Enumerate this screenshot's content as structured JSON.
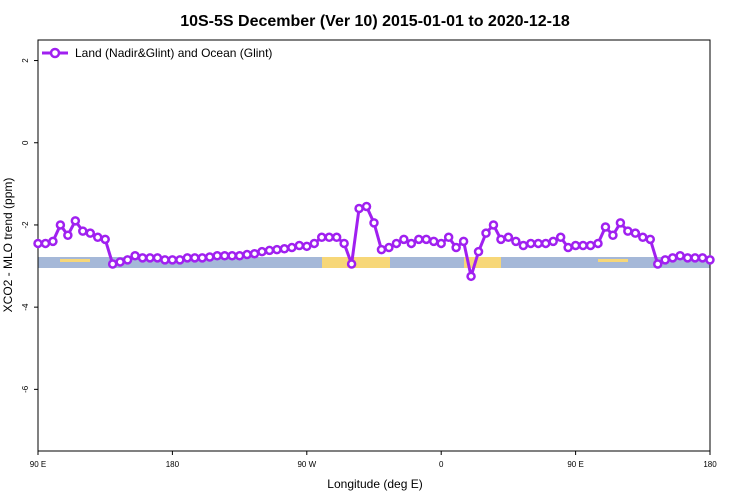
{
  "chart_data": {
    "type": "line",
    "title": "10S-5S December (Ver 10)   2015-01-01 to 2020-12-18",
    "x_label": "Longitude (deg E)",
    "y_label": "XCO2 - MLO trend (ppm)",
    "x": [
      90,
      95,
      100,
      105,
      110,
      115,
      120,
      125,
      130,
      135,
      140,
      145,
      150,
      155,
      160,
      165,
      170,
      175,
      180,
      185,
      190,
      195,
      200,
      205,
      210,
      215,
      220,
      225,
      230,
      235,
      240,
      245,
      250,
      255,
      260,
      265,
      270,
      275,
      280,
      285,
      290,
      295,
      300,
      305,
      310,
      315,
      320,
      325,
      330,
      335,
      340,
      345,
      350,
      355,
      360,
      365,
      370,
      375,
      380,
      385,
      390,
      395,
      400,
      405,
      410,
      415,
      420,
      425,
      430,
      435,
      440,
      445,
      450,
      455,
      460,
      465,
      470,
      475,
      480,
      485,
      490,
      495,
      500,
      505,
      510,
      515,
      520,
      525,
      530,
      535,
      540
    ],
    "series": [
      {
        "name": "Land (Nadir&Glint) and Ocean (Glint)",
        "color": "#a020f0",
        "values": [
          -2.45,
          -2.45,
          -2.4,
          -2.0,
          -2.25,
          -1.9,
          -2.15,
          -2.2,
          -2.3,
          -2.35,
          -2.95,
          -2.9,
          -2.85,
          -2.75,
          -2.8,
          -2.8,
          -2.8,
          -2.85,
          -2.85,
          -2.85,
          -2.8,
          -2.8,
          -2.8,
          -2.78,
          -2.75,
          -2.75,
          -2.75,
          -2.75,
          -2.72,
          -2.7,
          -2.65,
          -2.62,
          -2.6,
          -2.58,
          -2.55,
          -2.5,
          -2.52,
          -2.45,
          -2.3,
          -2.3,
          -2.3,
          -2.45,
          -2.95,
          -1.6,
          -1.55,
          -1.95,
          -2.6,
          -2.55,
          -2.45,
          -2.35,
          -2.45,
          -2.35,
          -2.35,
          -2.4,
          -2.45,
          -2.3,
          -2.55,
          -2.4,
          -3.25,
          -2.65,
          -2.2,
          -2.0,
          -2.35,
          -2.3,
          -2.4,
          -2.5,
          -2.45,
          -2.45,
          -2.45,
          -2.4,
          -2.3,
          -2.55,
          -2.5,
          -2.5,
          -2.5,
          -2.45,
          -2.05,
          -2.25,
          -1.95,
          -2.15,
          -2.2,
          -2.3,
          -2.35,
          -2.95,
          -2.85,
          -2.8,
          -2.75,
          -2.8,
          -2.8,
          -2.8,
          -2.85
        ]
      }
    ],
    "xlim": [
      90,
      540
    ],
    "xticks": [
      {
        "value": 90,
        "label": "90 E"
      },
      180,
      {
        "value": 270,
        "label": "90 W"
      },
      {
        "value": 360,
        "label": "0"
      },
      {
        "value": 450,
        "label": "90 E"
      },
      {
        "value": 540,
        "label": "180"
      }
    ],
    "ylim": [
      -7.5,
      2.5
    ],
    "yticks": [
      2,
      0,
      -2,
      -4,
      -6
    ],
    "legend": "upper left"
  }
}
